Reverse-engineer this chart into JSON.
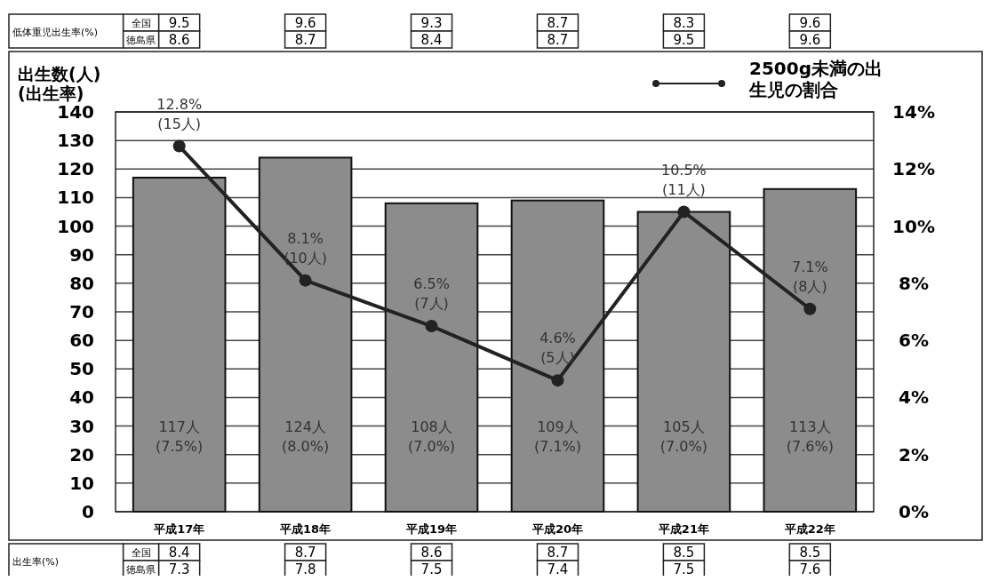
{
  "chart_data": {
    "type": "bar",
    "ylabel": "出生数(人)\n(出生率)",
    "categories": [
      "平成17年",
      "平成18年",
      "平成19年",
      "平成20年",
      "平成21年",
      "平成22年"
    ],
    "series": [
      {
        "color": "#8c8c8c",
        "values": [
          117,
          124,
          108,
          109,
          105,
          113
        ],
        "value_labels": [
          "117人\n(7.5%)",
          "124人\n(8.0%)",
          "108人\n(7.0%)",
          "109人\n(7.1%)",
          "105人\n(7.0%)",
          "113人\n(7.6%)"
        ]
      },
      {
        "type": "line",
        "name": "2500g未満の出生児の割合",
        "axis": "y2",
        "color": "#222222",
        "marker": "circle",
        "values": [
          12.8,
          8.1,
          6.5,
          4.6,
          10.5,
          7.1
        ],
        "value_labels": [
          "12.8%\n(15人)",
          "8.1%\n(10人)",
          "6.5%\n(7人)",
          "4.6%\n(5人)",
          "10.5%\n(11人)",
          "7.1%\n(8人)"
        ]
      }
    ],
    "ylim": [
      0,
      140
    ],
    "yticks": [
      0,
      10,
      20,
      30,
      40,
      50,
      60,
      70,
      80,
      90,
      100,
      110,
      120,
      130,
      140
    ],
    "y2lim": [
      0,
      14
    ],
    "y2ticks": [
      {
        "value": 0,
        "label": "0%"
      },
      {
        "value": 2,
        "label": "2%"
      },
      {
        "value": 4,
        "label": "4%"
      },
      {
        "value": 6,
        "label": "6%"
      },
      {
        "value": 8,
        "label": "8%"
      },
      {
        "value": 10,
        "label": "10%"
      },
      {
        "value": 12,
        "label": "12%"
      },
      {
        "value": 14,
        "label": "14%"
      }
    ],
    "grid": "y",
    "legend": "top right",
    "annotations": [
      "低体重児出生率(%)",
      "全国",
      "徳島県",
      "9.5",
      "8.6",
      "9.6",
      "8.7",
      "9.3",
      "8.4",
      "8.7",
      "8.7",
      "8.3",
      "9.5",
      "9.6",
      "9.6",
      "出生率(%)",
      "全国",
      "徳島県",
      "8.4",
      "7.3",
      "8.7",
      "7.8",
      "8.6",
      "7.5",
      "8.7",
      "7.4",
      "8.5",
      "7.5",
      "8.5",
      "7.6"
    ]
  }
}
